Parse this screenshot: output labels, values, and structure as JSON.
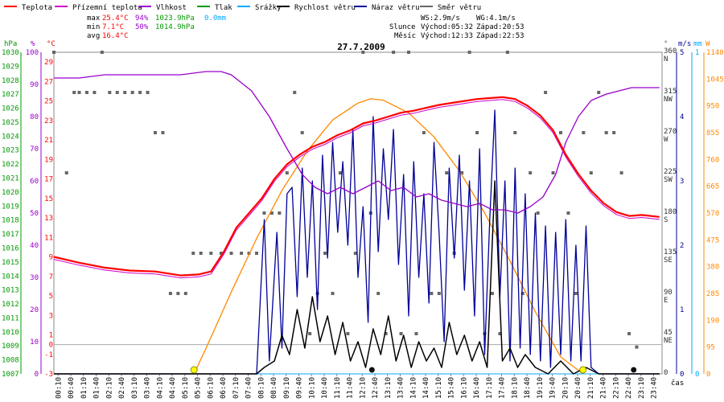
{
  "chart_data": {
    "type": "line",
    "title": "27.7.2009",
    "xlabel": "čas",
    "legend": [
      {
        "label": "Teplota",
        "color": "#ff0000"
      },
      {
        "label": "Přízemní teplota",
        "color": "#cc00cc"
      },
      {
        "label": "Vlhkost",
        "color": "#9900cc"
      },
      {
        "label": "Tlak",
        "color": "#009900"
      },
      {
        "label": "Srážky",
        "color": "#00aaff"
      },
      {
        "label": "Rychlost větru",
        "color": "#000000"
      },
      {
        "label": "Náraz větru",
        "color": "#000099"
      },
      {
        "label": "Směr větru",
        "color": "#666666"
      }
    ],
    "stats": {
      "max_label": "max",
      "max_temp": "25.4°C",
      "max_hum": "94%",
      "max_press": "1023.9hPa",
      "max_rain": "0.0mm",
      "min_label": "min",
      "min_temp": "7.1°C",
      "min_hum": "50%",
      "min_press": "1014.9hPa",
      "avg_label": "avg",
      "avg_temp": "16.4°C"
    },
    "astro": {
      "ws": "WS:2.9m/s",
      "wg": "WG:4.1m/s",
      "sun_label": "Slunce",
      "sun_rise": "Východ:05:32",
      "sun_set": "Západ:20:53",
      "moon_label": "Měsíc",
      "moon_rise": "Východ:12:33",
      "moon_set": "Západ:22:53"
    },
    "unit_labels": {
      "hpa": "hPa",
      "pct": "%",
      "degc": "°C",
      "deg": "°",
      "ms": "m/s",
      "mm": "mm",
      "w": "W"
    },
    "axes": {
      "x_ticks": [
        "00:10",
        "00:40",
        "01:10",
        "01:40",
        "02:10",
        "02:40",
        "03:10",
        "03:40",
        "04:10",
        "04:40",
        "05:10",
        "05:40",
        "06:10",
        "06:40",
        "07:10",
        "07:40",
        "08:10",
        "08:40",
        "09:10",
        "09:40",
        "10:10",
        "10:40",
        "11:10",
        "11:40",
        "12:10",
        "12:40",
        "13:10",
        "13:40",
        "14:10",
        "14:40",
        "15:10",
        "15:40",
        "16:10",
        "16:40",
        "17:10",
        "17:40",
        "18:10",
        "18:40",
        "19:10",
        "19:40",
        "20:10",
        "20:40",
        "21:10",
        "21:40",
        "22:10",
        "22:40",
        "23:10",
        "23:40"
      ],
      "hpa": [
        "1007",
        "1008",
        "1009",
        "1010",
        "1011",
        "1012",
        "1013",
        "1014",
        "1015",
        "1016",
        "1017",
        "1018",
        "1019",
        "1020",
        "1021",
        "1022",
        "1023",
        "1024",
        "1025",
        "1026",
        "1027",
        "1028",
        "1029",
        "1030"
      ],
      "pct": [
        "0",
        "10",
        "20",
        "30",
        "40",
        "50",
        "60",
        "70",
        "80",
        "90",
        "100"
      ],
      "degc": [
        "-3",
        "-1",
        "1",
        "3",
        "5",
        "7",
        "9",
        "11",
        "13",
        "15",
        "17",
        "19",
        "21",
        "23",
        "25",
        "27",
        "29"
      ],
      "zero_c": "0",
      "dir": [
        "0",
        "45",
        "90",
        "135",
        "180",
        "225",
        "270",
        "315",
        "360"
      ],
      "dir_names": [
        "",
        "NE",
        "E",
        "SE",
        "S",
        "SW",
        "W",
        "NW",
        "N"
      ],
      "ms": [
        "0",
        "1",
        "2",
        "3",
        "4",
        "5"
      ],
      "mm_top": "1",
      "w": [
        "0",
        "95",
        "190",
        "285",
        "380",
        "475",
        "570",
        "665",
        "760",
        "855",
        "950",
        "1045",
        "1140"
      ]
    },
    "temp_range": [
      -3,
      30
    ],
    "hum_range": [
      0,
      100
    ],
    "wind_range": [
      0,
      5
    ],
    "dir_range": [
      0,
      360
    ],
    "solar_range": [
      0,
      1140
    ],
    "temperature": [
      [
        0,
        9.0
      ],
      [
        1,
        8.4
      ],
      [
        2,
        7.9
      ],
      [
        3,
        7.6
      ],
      [
        4,
        7.5
      ],
      [
        5,
        7.1
      ],
      [
        5.7,
        7.2
      ],
      [
        6.2,
        7.5
      ],
      [
        6.7,
        9.5
      ],
      [
        7.2,
        12.0
      ],
      [
        7.7,
        13.5
      ],
      [
        8.2,
        15.0
      ],
      [
        8.7,
        17.0
      ],
      [
        9.2,
        18.5
      ],
      [
        9.7,
        19.5
      ],
      [
        10.2,
        20.3
      ],
      [
        10.7,
        20.8
      ],
      [
        11.2,
        21.5
      ],
      [
        11.7,
        22.0
      ],
      [
        12.2,
        22.7
      ],
      [
        12.7,
        23.0
      ],
      [
        13.2,
        23.4
      ],
      [
        13.7,
        23.8
      ],
      [
        14.2,
        24.0
      ],
      [
        14.7,
        24.3
      ],
      [
        15.2,
        24.6
      ],
      [
        15.7,
        24.8
      ],
      [
        16.2,
        25.0
      ],
      [
        16.7,
        25.2
      ],
      [
        17.2,
        25.3
      ],
      [
        17.7,
        25.4
      ],
      [
        18.2,
        25.2
      ],
      [
        18.7,
        24.5
      ],
      [
        19.2,
        23.5
      ],
      [
        19.7,
        22.0
      ],
      [
        20.2,
        19.5
      ],
      [
        20.7,
        17.5
      ],
      [
        21.2,
        15.8
      ],
      [
        21.7,
        14.5
      ],
      [
        22.2,
        13.6
      ],
      [
        22.7,
        13.2
      ],
      [
        23.2,
        13.3
      ],
      [
        23.9,
        13.1
      ]
    ],
    "humidity": [
      [
        0,
        92
      ],
      [
        1,
        92
      ],
      [
        2,
        93
      ],
      [
        3,
        93
      ],
      [
        4,
        93
      ],
      [
        5,
        93
      ],
      [
        6,
        94
      ],
      [
        6.6,
        94
      ],
      [
        7,
        93
      ],
      [
        7.8,
        88
      ],
      [
        8.5,
        80
      ],
      [
        9.2,
        70
      ],
      [
        9.8,
        62
      ],
      [
        10.3,
        58
      ],
      [
        10.8,
        56
      ],
      [
        11.3,
        58
      ],
      [
        11.8,
        56
      ],
      [
        12.3,
        58
      ],
      [
        12.8,
        60
      ],
      [
        13.3,
        57
      ],
      [
        13.8,
        58
      ],
      [
        14.3,
        55
      ],
      [
        14.8,
        56
      ],
      [
        15.3,
        54
      ],
      [
        15.8,
        53
      ],
      [
        16.3,
        52
      ],
      [
        16.8,
        53
      ],
      [
        17.3,
        51
      ],
      [
        17.8,
        51
      ],
      [
        18.3,
        50
      ],
      [
        18.8,
        52
      ],
      [
        19.3,
        55
      ],
      [
        19.8,
        62
      ],
      [
        20.2,
        72
      ],
      [
        20.7,
        80
      ],
      [
        21.2,
        85
      ],
      [
        21.8,
        87
      ],
      [
        22.3,
        88
      ],
      [
        22.8,
        89
      ],
      [
        23.3,
        89
      ],
      [
        23.9,
        89
      ]
    ],
    "wind_speed": [
      [
        0,
        0
      ],
      [
        8.0,
        0
      ],
      [
        8.3,
        0.1
      ],
      [
        8.7,
        0.2
      ],
      [
        9.0,
        0.6
      ],
      [
        9.3,
        0.3
      ],
      [
        9.6,
        1.0
      ],
      [
        9.9,
        0.4
      ],
      [
        10.2,
        1.2
      ],
      [
        10.5,
        0.5
      ],
      [
        10.8,
        0.9
      ],
      [
        11.1,
        0.3
      ],
      [
        11.4,
        0.8
      ],
      [
        11.7,
        0.2
      ],
      [
        12.0,
        0.5
      ],
      [
        12.3,
        0.1
      ],
      [
        12.6,
        0.7
      ],
      [
        12.9,
        0.3
      ],
      [
        13.2,
        0.9
      ],
      [
        13.5,
        0.2
      ],
      [
        13.8,
        0.6
      ],
      [
        14.1,
        0.1
      ],
      [
        14.4,
        0.5
      ],
      [
        14.7,
        0.2
      ],
      [
        15.0,
        0.4
      ],
      [
        15.3,
        0.1
      ],
      [
        15.6,
        0.8
      ],
      [
        15.9,
        0.3
      ],
      [
        16.2,
        0.6
      ],
      [
        16.5,
        0.2
      ],
      [
        16.8,
        0.5
      ],
      [
        17.1,
        0.1
      ],
      [
        17.4,
        3.0
      ],
      [
        17.7,
        0.2
      ],
      [
        18.0,
        0.4
      ],
      [
        18.3,
        0.1
      ],
      [
        18.6,
        0.3
      ],
      [
        19.0,
        0.1
      ],
      [
        19.5,
        0.0
      ],
      [
        20.0,
        0.2
      ],
      [
        20.5,
        0.0
      ],
      [
        21.0,
        0.1
      ],
      [
        21.5,
        0
      ],
      [
        23.9,
        0
      ]
    ],
    "wind_gust": [
      [
        0,
        0
      ],
      [
        8.0,
        0
      ],
      [
        8.3,
        2.4
      ],
      [
        8.5,
        0.2
      ],
      [
        8.8,
        2.2
      ],
      [
        9.0,
        0.4
      ],
      [
        9.2,
        2.8
      ],
      [
        9.4,
        2.9
      ],
      [
        9.6,
        1.2
      ],
      [
        9.8,
        3.2
      ],
      [
        10.0,
        1.5
      ],
      [
        10.2,
        3.0
      ],
      [
        10.4,
        1.0
      ],
      [
        10.6,
        3.4
      ],
      [
        10.8,
        1.8
      ],
      [
        11.0,
        3.6
      ],
      [
        11.2,
        2.2
      ],
      [
        11.4,
        3.3
      ],
      [
        11.6,
        2.0
      ],
      [
        11.8,
        3.8
      ],
      [
        12.0,
        1.5
      ],
      [
        12.2,
        2.6
      ],
      [
        12.4,
        0.8
      ],
      [
        12.6,
        4.0
      ],
      [
        12.8,
        1.9
      ],
      [
        13.0,
        3.5
      ],
      [
        13.2,
        2.4
      ],
      [
        13.4,
        3.8
      ],
      [
        13.6,
        1.7
      ],
      [
        13.8,
        3.1
      ],
      [
        14.0,
        0.9
      ],
      [
        14.2,
        3.3
      ],
      [
        14.4,
        1.5
      ],
      [
        14.6,
        2.8
      ],
      [
        14.8,
        1.1
      ],
      [
        15.0,
        3.6
      ],
      [
        15.2,
        2.2
      ],
      [
        15.4,
        0.5
      ],
      [
        15.6,
        3.2
      ],
      [
        15.8,
        1.8
      ],
      [
        16.0,
        3.4
      ],
      [
        16.2,
        1.3
      ],
      [
        16.4,
        3.0
      ],
      [
        16.6,
        0.9
      ],
      [
        16.8,
        3.5
      ],
      [
        17.0,
        0.3
      ],
      [
        17.2,
        2.4
      ],
      [
        17.4,
        4.1
      ],
      [
        17.6,
        1.2
      ],
      [
        17.8,
        3.0
      ],
      [
        18.0,
        0.2
      ],
      [
        18.2,
        3.2
      ],
      [
        18.4,
        0.4
      ],
      [
        18.6,
        2.8
      ],
      [
        18.8,
        0.3
      ],
      [
        19.0,
        2.5
      ],
      [
        19.2,
        0.2
      ],
      [
        19.4,
        2.3
      ],
      [
        19.6,
        0.1
      ],
      [
        19.8,
        2.2
      ],
      [
        20.0,
        0.3
      ],
      [
        20.2,
        2.4
      ],
      [
        20.4,
        0.2
      ],
      [
        20.6,
        2.0
      ],
      [
        20.8,
        0.2
      ],
      [
        21.0,
        2.3
      ],
      [
        21.2,
        0.1
      ],
      [
        21.5,
        0
      ],
      [
        23.9,
        0
      ]
    ],
    "wind_direction": [
      [
        0,
        360
      ],
      [
        0.5,
        225
      ],
      [
        0.8,
        315
      ],
      [
        1.0,
        315
      ],
      [
        1.3,
        315
      ],
      [
        1.6,
        315
      ],
      [
        1.9,
        360
      ],
      [
        2.2,
        315
      ],
      [
        2.5,
        315
      ],
      [
        2.8,
        315
      ],
      [
        3.1,
        315
      ],
      [
        3.4,
        315
      ],
      [
        3.7,
        315
      ],
      [
        4.0,
        270
      ],
      [
        4.3,
        270
      ],
      [
        4.6,
        90
      ],
      [
        4.9,
        90
      ],
      [
        5.2,
        90
      ],
      [
        5.5,
        135
      ],
      [
        5.8,
        135
      ],
      [
        6.2,
        135
      ],
      [
        6.6,
        135
      ],
      [
        7.0,
        135
      ],
      [
        7.4,
        135
      ],
      [
        7.7,
        135
      ],
      [
        8.0,
        135
      ],
      [
        8.3,
        180
      ],
      [
        8.6,
        180
      ],
      [
        8.9,
        180
      ],
      [
        9.2,
        225
      ],
      [
        9.5,
        315
      ],
      [
        9.8,
        270
      ],
      [
        10.1,
        45
      ],
      [
        10.4,
        90
      ],
      [
        10.7,
        135
      ],
      [
        11.0,
        90
      ],
      [
        11.3,
        225
      ],
      [
        11.6,
        45
      ],
      [
        11.9,
        135
      ],
      [
        12.2,
        360
      ],
      [
        12.5,
        180
      ],
      [
        12.8,
        90
      ],
      [
        13.1,
        45
      ],
      [
        13.4,
        360
      ],
      [
        13.7,
        45
      ],
      [
        14.0,
        360
      ],
      [
        14.3,
        45
      ],
      [
        14.6,
        270
      ],
      [
        14.9,
        90
      ],
      [
        15.2,
        90
      ],
      [
        15.5,
        225
      ],
      [
        15.8,
        135
      ],
      [
        16.1,
        225
      ],
      [
        16.4,
        360
      ],
      [
        16.7,
        270
      ],
      [
        17.0,
        45
      ],
      [
        17.3,
        90
      ],
      [
        17.6,
        45
      ],
      [
        17.9,
        360
      ],
      [
        18.2,
        270
      ],
      [
        18.5,
        90
      ],
      [
        18.8,
        225
      ],
      [
        19.1,
        180
      ],
      [
        19.4,
        315
      ],
      [
        19.7,
        225
      ],
      [
        20.0,
        270
      ],
      [
        20.3,
        180
      ],
      [
        20.6,
        90
      ],
      [
        20.9,
        270
      ],
      [
        21.2,
        225
      ],
      [
        21.5,
        315
      ],
      [
        21.8,
        270
      ],
      [
        22.1,
        270
      ],
      [
        22.4,
        225
      ],
      [
        22.7,
        45
      ],
      [
        23.0,
        30
      ]
    ],
    "solar": [
      [
        5.53,
        0
      ],
      [
        6.0,
        90
      ],
      [
        7.0,
        290
      ],
      [
        8.0,
        480
      ],
      [
        9.0,
        650
      ],
      [
        10.0,
        790
      ],
      [
        11.0,
        900
      ],
      [
        12.0,
        960
      ],
      [
        12.5,
        975
      ],
      [
        13.0,
        970
      ],
      [
        14.0,
        925
      ],
      [
        15.0,
        840
      ],
      [
        16.0,
        720
      ],
      [
        17.0,
        570
      ],
      [
        18.0,
        400
      ],
      [
        19.0,
        220
      ],
      [
        20.0,
        60
      ],
      [
        20.88,
        0
      ]
    ],
    "rain": [
      [
        0,
        0
      ],
      [
        23.9,
        0
      ]
    ],
    "markers": {
      "sunrise": 5.53,
      "sunset": 20.88,
      "moonrise": 12.55,
      "moonset": 22.88
    }
  }
}
